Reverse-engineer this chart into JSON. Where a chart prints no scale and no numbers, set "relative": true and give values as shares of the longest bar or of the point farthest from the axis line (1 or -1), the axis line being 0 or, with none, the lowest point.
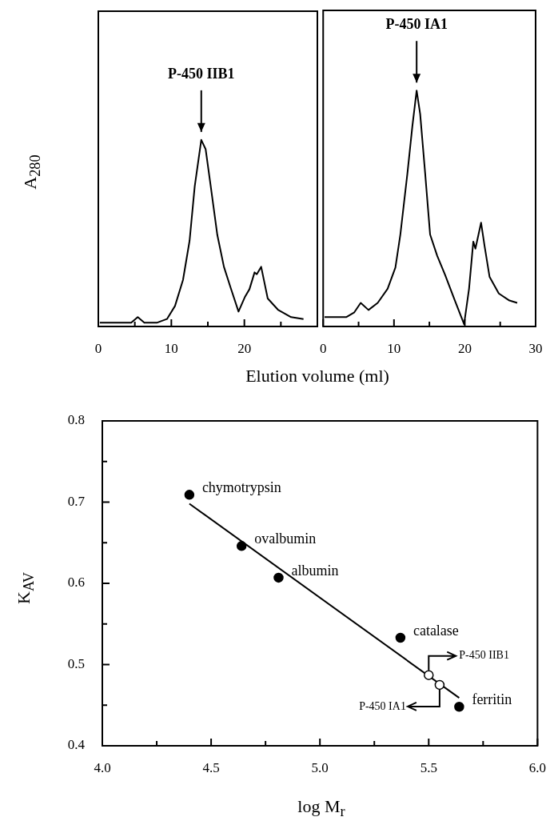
{
  "chart_data": [
    {
      "type": "line",
      "relative": true,
      "ylabel": "A$_{280}$",
      "xlabel": "Elution volume (ml)",
      "xlim": [
        0,
        30
      ],
      "xticks": [
        0,
        {
          "value": 5,
          "label": null
        },
        10,
        {
          "value": 15,
          "label": null
        },
        20,
        {
          "value": 25,
          "label": null
        }
      ],
      "tick_labels": "x",
      "grid": false,
      "marker": "none",
      "line_style": "solid",
      "annotations": [
        "P-450 IIB1"
      ],
      "series": [
        {
          "color": "#000000",
          "x": [
            0.2,
            4.5,
            5.4,
            6.3,
            8.0,
            9.4,
            10.5,
            11.6,
            12.5,
            13.2,
            14.1,
            14.7,
            15.4,
            16.3,
            17.2,
            18.1,
            19.2,
            20.1,
            20.7,
            21.4,
            21.7,
            22.3,
            23.2,
            24.6,
            26.4,
            28.1
          ],
          "values": [
            0.02,
            0.02,
            0.05,
            0.02,
            0.02,
            0.04,
            0.11,
            0.25,
            0.46,
            0.75,
            1.0,
            0.95,
            0.75,
            0.49,
            0.32,
            0.21,
            0.08,
            0.16,
            0.2,
            0.29,
            0.28,
            0.32,
            0.15,
            0.09,
            0.05,
            0.04
          ]
        }
      ]
    },
    {
      "type": "line",
      "relative": true,
      "xlim": [
        0,
        30
      ],
      "xticks": [
        0,
        {
          "value": 5,
          "label": null
        },
        10,
        {
          "value": 15,
          "label": null
        },
        20,
        {
          "value": 25,
          "label": null
        },
        30
      ],
      "tick_labels": "x",
      "grid": false,
      "marker": "none",
      "line_style": "solid",
      "annotations": [
        "P-450 IA1"
      ],
      "series": [
        {
          "color": "#000000",
          "x": [
            0.2,
            3.3,
            4.4,
            5.3,
            6.4,
            7.7,
            9.1,
            10.2,
            10.9,
            11.9,
            12.6,
            13.2,
            13.7,
            14.4,
            15.1,
            16.1,
            17.2,
            18.6,
            19.9,
            20.6,
            21.2,
            21.5,
            22.3,
            22.8,
            23.5,
            24.8,
            26.3,
            27.4
          ],
          "values": [
            0.04,
            0.04,
            0.06,
            0.1,
            0.07,
            0.1,
            0.16,
            0.25,
            0.39,
            0.65,
            0.85,
            1.0,
            0.9,
            0.65,
            0.39,
            0.3,
            0.22,
            0.11,
            0.01,
            0.16,
            0.36,
            0.33,
            0.44,
            0.34,
            0.21,
            0.14,
            0.11,
            0.1
          ]
        }
      ]
    },
    {
      "type": "scatter",
      "xlabel": "log M$_{r}$",
      "ylabel": "K$_{AV}$",
      "xlim": [
        4.0,
        6.0
      ],
      "ylim": [
        0.4,
        0.8
      ],
      "xticks": [
        {
          "value": 4,
          "label": "4.0"
        },
        {
          "value": 4.25,
          "label": null
        },
        4.5,
        {
          "value": 4.75,
          "label": null
        },
        {
          "value": 5,
          "label": "5.0"
        },
        {
          "value": 5.25,
          "label": null
        },
        5.5,
        {
          "value": 5.75,
          "label": null
        },
        {
          "value": 6,
          "label": "6.0"
        }
      ],
      "yticks": [
        0.4,
        {
          "value": 0.45,
          "label": null
        },
        0.5,
        {
          "value": 0.55,
          "label": null
        },
        0.6,
        {
          "value": 0.65,
          "label": null
        },
        0.7,
        {
          "value": 0.75,
          "label": null
        },
        0.8
      ],
      "grid": false,
      "marker": "circle",
      "annotations": [
        {
          "text": "chymotrypsin",
          "x": 4.4,
          "y": 0.709
        },
        {
          "text": "ovalbumin",
          "x": 4.64,
          "y": 0.646
        },
        {
          "text": "albumin",
          "x": 4.81,
          "y": 0.607
        },
        {
          "text": "catalase",
          "x": 5.37,
          "y": 0.533
        },
        {
          "text": "ferritin",
          "x": 5.64,
          "y": 0.448
        },
        {
          "text": "P-450 IIB1",
          "x": 5.5,
          "y": 0.487
        },
        {
          "text": "P-450 IA1",
          "x": 5.55,
          "y": 0.475
        }
      ],
      "series": [
        {
          "type": "line",
          "color": "#000000",
          "marker": "none",
          "x": [
            4.4,
            5.64
          ],
          "values": [
            0.698,
            0.459
          ]
        },
        {
          "color": "#000000",
          "x": [
            4.4,
            4.64,
            4.81,
            5.37,
            5.64
          ],
          "values": [
            0.709,
            0.646,
            0.607,
            0.533,
            0.448
          ]
        },
        {
          "color": "#ffffff",
          "x": [
            5.5,
            5.55
          ],
          "values": [
            0.487,
            0.475
          ]
        }
      ]
    }
  ]
}
